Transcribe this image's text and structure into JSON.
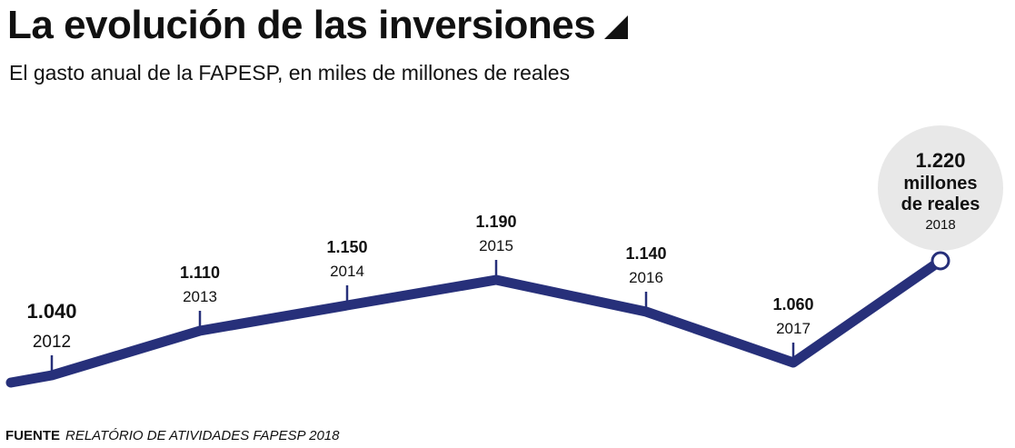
{
  "title": "La evolución de las inversiones",
  "title_icon": "triangle-corner-icon",
  "subtitle": "El gasto anual de la FAPESP, en miles de millones de reales",
  "source": {
    "label": "FUENTE",
    "text": "RELATÓRIO DE ATIVIDADES FAPESP 2018"
  },
  "colors": {
    "line": "#27307a",
    "bubble": "#e8e8e8",
    "text": "#111111"
  },
  "chart_data": {
    "type": "line",
    "title": "La evolución de las inversiones",
    "subtitle": "El gasto anual de la FAPESP, en miles de millones de reales",
    "x": [
      "2012",
      "2013",
      "2014",
      "2015",
      "2016",
      "2017",
      "2018"
    ],
    "values": [
      1040,
      1110,
      1150,
      1190,
      1140,
      1060,
      1220
    ],
    "value_labels": [
      "1.040",
      "1.110",
      "1.150",
      "1.190",
      "1.140",
      "1.060",
      "1.220"
    ],
    "highlight": {
      "value": "1.220",
      "lines": [
        "millones",
        "de reales"
      ],
      "year": "2018"
    },
    "xlabel": "",
    "ylabel": "",
    "grid": false,
    "legend": "none"
  }
}
